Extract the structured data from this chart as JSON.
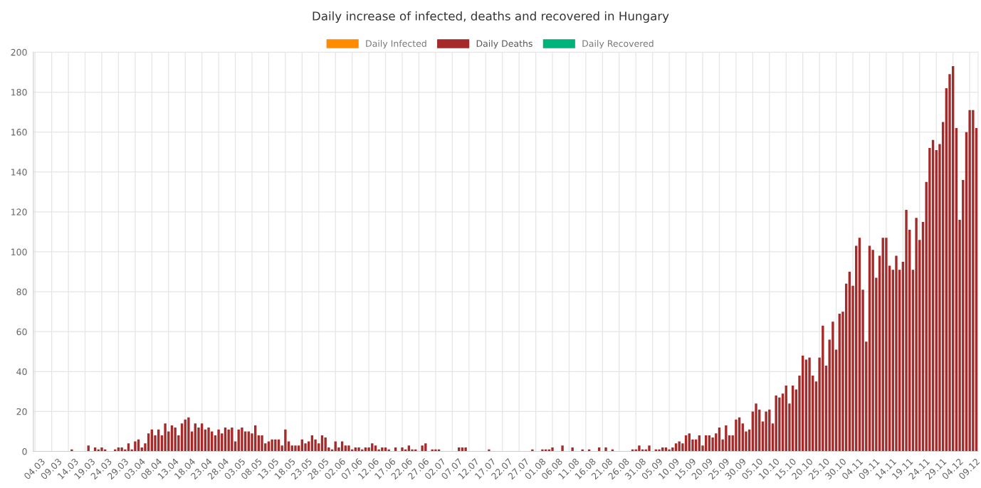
{
  "chart_data": {
    "type": "bar",
    "title": "Daily increase of infected, deaths and recovered in Hungary",
    "categories": [
      "04.03",
      null,
      null,
      null,
      null,
      "09.03",
      null,
      null,
      null,
      null,
      "14.03",
      null,
      null,
      null,
      null,
      "19.03",
      null,
      null,
      null,
      null,
      "24.03",
      null,
      null,
      null,
      null,
      "29.03",
      null,
      null,
      null,
      null,
      "03.04",
      null,
      null,
      null,
      null,
      "08.04",
      null,
      null,
      null,
      null,
      "13.04",
      null,
      null,
      null,
      null,
      "18.04",
      null,
      null,
      null,
      null,
      "23.04",
      null,
      null,
      null,
      null,
      "28.04",
      null,
      null,
      null,
      null,
      "03.05",
      null,
      null,
      null,
      null,
      "08.05",
      null,
      null,
      null,
      null,
      "13.05",
      null,
      null,
      null,
      null,
      "18.05",
      null,
      null,
      null,
      null,
      "23.05",
      null,
      null,
      null,
      null,
      "28.05",
      null,
      null,
      null,
      null,
      "02.06",
      null,
      null,
      null,
      null,
      "07.06",
      null,
      null,
      null,
      null,
      "12.06",
      null,
      null,
      null,
      null,
      "17.06",
      null,
      null,
      null,
      null,
      "22.06",
      null,
      null,
      null,
      null,
      "27.06",
      null,
      null,
      null,
      null,
      "02.07",
      null,
      null,
      null,
      null,
      "07.07",
      null,
      null,
      null,
      null,
      "12.07",
      null,
      null,
      null,
      null,
      "17.07",
      null,
      null,
      null,
      null,
      "22.07",
      null,
      null,
      null,
      null,
      "27.07",
      null,
      null,
      null,
      null,
      "01.08",
      null,
      null,
      null,
      null,
      "06.08",
      null,
      null,
      null,
      null,
      "11.08",
      null,
      null,
      null,
      null,
      "16.08",
      null,
      null,
      null,
      null,
      "21.08",
      null,
      null,
      null,
      null,
      "26.08",
      null,
      null,
      null,
      null,
      "31.08",
      null,
      null,
      null,
      null,
      "05.09",
      null,
      null,
      null,
      null,
      "10.09",
      null,
      null,
      null,
      null,
      "15.09",
      null,
      null,
      null,
      null,
      "20.09",
      null,
      null,
      null,
      null,
      "25.09",
      null,
      null,
      null,
      null,
      "30.09",
      null,
      null,
      null,
      null,
      "05.10",
      null,
      null,
      null,
      null,
      "10.10",
      null,
      null,
      null,
      null,
      "15.10",
      null,
      null,
      null,
      null,
      "20.10",
      null,
      null,
      null,
      null,
      "25.10",
      null,
      null,
      null,
      null,
      "30.10",
      null,
      null,
      null,
      null,
      "04.11",
      null,
      null,
      null,
      null,
      "09.11",
      null,
      null,
      null,
      null,
      "14.11",
      null,
      null,
      null,
      null,
      "19.11",
      null,
      null,
      null,
      null,
      "24.11",
      null,
      null,
      null,
      null,
      "29.11",
      null,
      null,
      null,
      null,
      "04.12",
      null,
      null,
      null,
      null,
      "09.12",
      null,
      null
    ],
    "series": [
      {
        "name": "Daily Infected",
        "color": "#ff8c00",
        "values": [
          null,
          null,
          null,
          null,
          null,
          null,
          null,
          null,
          null,
          null,
          null,
          null,
          null,
          null,
          null,
          null,
          null,
          null,
          null,
          null,
          null,
          null,
          null,
          null,
          null,
          null,
          null,
          null,
          null,
          null,
          null,
          null,
          null,
          null,
          null,
          null,
          null,
          null,
          null,
          null,
          null,
          null,
          null,
          null,
          null,
          null,
          null,
          null,
          null,
          null,
          null,
          null,
          null,
          null,
          null,
          null,
          null,
          null,
          null,
          null,
          null,
          null,
          null,
          null,
          null,
          null,
          null,
          null,
          null,
          null,
          null,
          null,
          null,
          null,
          null,
          null,
          null,
          null,
          null,
          null,
          null,
          null,
          null,
          null,
          null,
          null,
          null,
          null,
          null,
          null,
          null,
          null,
          null,
          null,
          null,
          null,
          null,
          null,
          null,
          null,
          null,
          null,
          null,
          null,
          null,
          null,
          null,
          null,
          null,
          null,
          null,
          null,
          null,
          null,
          null,
          null,
          null,
          null,
          null,
          null,
          null,
          null,
          null,
          null,
          null,
          null,
          null,
          null,
          null,
          null,
          null,
          null,
          null,
          null,
          null,
          null,
          null,
          null,
          null,
          null,
          null,
          null,
          null,
          null,
          null,
          null,
          null,
          null,
          null,
          null,
          null,
          null,
          null,
          null,
          null,
          null,
          null,
          null,
          null,
          null,
          null,
          null,
          null,
          null,
          null,
          null,
          null,
          null,
          null,
          null,
          null,
          null,
          null,
          null,
          null,
          null,
          null,
          null,
          null,
          null,
          null,
          null,
          null,
          null,
          null,
          null,
          null,
          null,
          null,
          null,
          null,
          null,
          null,
          null,
          null,
          null,
          null,
          null,
          null,
          null,
          null,
          null,
          null,
          null,
          null,
          null,
          null,
          null,
          null,
          null,
          null,
          null,
          null,
          null,
          null,
          null,
          null,
          null,
          null,
          null,
          null,
          null,
          null,
          null,
          null,
          null,
          null,
          null,
          null,
          null,
          null,
          null,
          null,
          null,
          null,
          null,
          null,
          null,
          null,
          null,
          null,
          null,
          null,
          null,
          null,
          null,
          null,
          null,
          null,
          null,
          null,
          null,
          null,
          null,
          null,
          null,
          null,
          null,
          null,
          null,
          null,
          null,
          null,
          null,
          null,
          null,
          null,
          null,
          null,
          null,
          null,
          null,
          null,
          null,
          null,
          null,
          null,
          null,
          null,
          null,
          null,
          null,
          null
        ]
      },
      {
        "name": "Daily Deaths",
        "color": "#a52a2a",
        "values": [
          0,
          0,
          0,
          0,
          0,
          0,
          0,
          0,
          0,
          0,
          0,
          1,
          0,
          0,
          0,
          0,
          3,
          0,
          2,
          1,
          2,
          1,
          0,
          0,
          1,
          2,
          2,
          1,
          4,
          1,
          5,
          6,
          2,
          4,
          9,
          11,
          8,
          11,
          8,
          14,
          10,
          13,
          12,
          8,
          14,
          16,
          17,
          10,
          14,
          12,
          14,
          11,
          12,
          10,
          8,
          11,
          9,
          12,
          11,
          12,
          5,
          11,
          12,
          10,
          10,
          9,
          13,
          8,
          8,
          4,
          5,
          6,
          6,
          6,
          3,
          11,
          5,
          3,
          3,
          3,
          6,
          4,
          5,
          8,
          6,
          4,
          8,
          7,
          2,
          1,
          5,
          2,
          5,
          3,
          3,
          1,
          2,
          2,
          1,
          2,
          2,
          4,
          3,
          1,
          2,
          2,
          1,
          0,
          2,
          0,
          2,
          1,
          3,
          1,
          1,
          0,
          3,
          4,
          0,
          1,
          1,
          1,
          0,
          0,
          0,
          0,
          0,
          2,
          2,
          2,
          0,
          0,
          0,
          0,
          0,
          0,
          1,
          0,
          0,
          0,
          0,
          0,
          0,
          0,
          0,
          0,
          0,
          0,
          0,
          1,
          0,
          0,
          1,
          1,
          1,
          2,
          0,
          0,
          3,
          0,
          0,
          2,
          0,
          0,
          1,
          0,
          1,
          0,
          0,
          2,
          0,
          2,
          0,
          1,
          0,
          0,
          0,
          0,
          0,
          1,
          1,
          3,
          1,
          1,
          3,
          0,
          1,
          1,
          2,
          2,
          1,
          2,
          4,
          5,
          4,
          8,
          9,
          6,
          6,
          8,
          3,
          8,
          8,
          7,
          9,
          12,
          6,
          13,
          8,
          8,
          16,
          17,
          14,
          10,
          11,
          20,
          24,
          21,
          15,
          20,
          21,
          14,
          28,
          27,
          29,
          33,
          24,
          33,
          31,
          38,
          48,
          46,
          47,
          38,
          35,
          47,
          63,
          43,
          56,
          65,
          51,
          69,
          70,
          84,
          90,
          83,
          103,
          107,
          81,
          55,
          103,
          101,
          87,
          98,
          107,
          107,
          93,
          91,
          98,
          91,
          95,
          121,
          111,
          91,
          117,
          106,
          115,
          135,
          152,
          156,
          151,
          154,
          165,
          182,
          189,
          193,
          162,
          116,
          136,
          160,
          171,
          171,
          162
        ]
      },
      {
        "name": "Daily Recovered",
        "color": "#00b37a",
        "values": [
          null,
          null,
          null,
          null,
          null,
          null,
          null,
          null,
          null,
          null,
          null,
          null,
          null,
          null,
          null,
          null,
          null,
          null,
          null,
          null,
          null,
          null,
          null,
          null,
          null,
          null,
          null,
          null,
          null,
          null,
          null,
          null,
          null,
          null,
          null,
          null,
          null,
          null,
          null,
          null,
          null,
          null,
          null,
          null,
          null,
          null,
          null,
          null,
          null,
          null,
          null,
          null,
          null,
          null,
          null,
          null,
          null,
          null,
          null,
          null,
          null,
          null,
          null,
          null,
          null,
          null,
          null,
          null,
          null,
          null,
          null,
          null,
          null,
          null,
          null,
          null,
          null,
          null,
          null,
          null,
          null,
          null,
          null,
          null,
          null,
          null,
          null,
          null,
          null,
          null,
          null,
          null,
          null,
          null,
          null,
          null,
          null,
          null,
          null,
          null,
          null,
          null,
          null,
          null,
          null,
          null,
          null,
          null,
          null,
          null,
          null,
          null,
          null,
          null,
          null,
          null,
          null,
          null,
          null,
          null,
          null,
          null,
          null,
          null,
          null,
          null,
          null,
          null,
          null,
          null,
          null,
          null,
          null,
          null,
          null,
          null,
          null,
          null,
          null,
          null,
          null,
          null,
          null,
          null,
          null,
          null,
          null,
          null,
          null,
          null,
          null,
          null,
          null,
          null,
          null,
          null,
          null,
          null,
          null,
          null,
          null,
          null,
          null,
          null,
          null,
          null,
          null,
          null,
          null,
          null,
          null,
          null,
          null,
          null,
          null,
          null,
          null,
          null,
          null,
          null,
          null,
          null,
          null,
          null,
          null,
          null,
          null,
          null,
          null,
          null,
          null,
          null,
          null,
          null,
          null,
          null,
          null,
          null,
          null,
          null,
          null,
          null,
          null,
          null,
          null,
          null,
          null,
          null,
          null,
          null,
          null,
          null,
          null,
          null,
          null,
          null,
          null,
          null,
          null,
          null,
          null,
          null,
          null,
          null,
          null,
          null,
          null,
          null,
          null,
          null,
          null,
          null,
          null,
          null,
          null,
          null,
          null,
          null,
          null,
          null,
          null,
          null,
          null,
          null,
          null,
          null,
          null,
          null,
          null,
          null,
          null,
          null,
          null,
          null,
          null,
          null,
          null,
          null,
          null,
          null,
          null,
          null,
          null,
          null,
          null,
          null,
          null,
          null,
          null,
          null,
          null,
          null,
          null,
          null,
          null,
          null,
          null,
          null,
          null,
          null,
          null,
          null,
          null
        ]
      }
    ],
    "ylim": [
      0,
      200
    ],
    "yticks": [
      0,
      20,
      40,
      60,
      80,
      100,
      120,
      140,
      160,
      180,
      200
    ],
    "grid": true,
    "legend": "top"
  }
}
